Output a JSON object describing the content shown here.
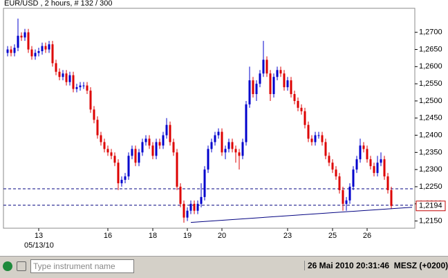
{
  "chart_data": {
    "type": "candlestick",
    "title": "EUR/USD , 2 hours, # 132 / 300",
    "categories": [
      null,
      null,
      null,
      null,
      null,
      null,
      null,
      null,
      null,
      "13",
      null,
      null,
      null,
      null,
      null,
      null,
      null,
      null,
      null,
      null,
      null,
      null,
      null,
      null,
      null,
      null,
      null,
      null,
      null,
      "16",
      null,
      null,
      null,
      null,
      null,
      null,
      null,
      null,
      null,
      null,
      null,
      null,
      "18",
      null,
      null,
      null,
      null,
      null,
      null,
      null,
      null,
      null,
      "19",
      null,
      null,
      null,
      null,
      null,
      null,
      null,
      null,
      null,
      "20",
      null,
      null,
      null,
      null,
      null,
      null,
      null,
      null,
      null,
      null,
      null,
      null,
      null,
      null,
      null,
      null,
      null,
      null,
      "23",
      null,
      null,
      null,
      null,
      null,
      null,
      null,
      null,
      null,
      null,
      null,
      null,
      "25",
      null,
      null,
      null,
      null,
      null,
      null,
      null,
      null,
      null,
      "26",
      null,
      null,
      null,
      null,
      null,
      null,
      null
    ],
    "date_label": "05/13/10",
    "open": [
      1.264,
      1.265,
      1.264,
      1.2655,
      1.269,
      1.2685,
      1.27,
      1.265,
      1.263,
      1.264,
      1.2645,
      1.266,
      1.265,
      1.2665,
      1.261,
      1.2585,
      1.257,
      1.258,
      1.2555,
      1.2575,
      1.2535,
      1.254,
      1.2545,
      1.2545,
      1.253,
      1.2475,
      1.2445,
      1.24,
      1.238,
      1.236,
      1.235,
      1.234,
      1.232,
      1.226,
      1.227,
      1.228,
      1.234,
      1.236,
      1.232,
      1.235,
      1.238,
      1.239,
      1.237,
      1.234,
      1.238,
      1.237,
      1.24,
      1.243,
      1.238,
      1.235,
      1.225,
      1.22,
      1.216,
      1.218,
      1.22,
      1.218,
      1.22,
      1.222,
      1.23,
      1.236,
      1.238,
      1.24,
      1.241,
      1.235,
      1.236,
      1.238,
      1.236,
      1.235,
      1.234,
      1.238,
      1.249,
      1.256,
      1.252,
      1.255,
      1.258,
      1.262,
      1.258,
      1.252,
      1.257,
      1.259,
      1.258,
      1.254,
      1.256,
      1.252,
      1.25,
      1.248,
      1.247,
      1.243,
      1.239,
      1.238,
      1.24,
      1.24,
      1.238,
      1.234,
      1.232,
      1.23,
      1.228,
      1.224,
      1.22,
      1.221,
      1.225,
      1.23,
      1.233,
      1.237,
      1.236,
      1.233,
      1.231,
      1.229,
      1.232,
      1.233,
      1.228,
      1.224
    ],
    "high": [
      1.266,
      1.266,
      1.2665,
      1.274,
      1.27,
      1.271,
      1.271,
      1.266,
      1.265,
      1.2655,
      1.267,
      1.267,
      1.2675,
      1.2675,
      1.262,
      1.2595,
      1.259,
      1.259,
      1.2585,
      1.2585,
      1.255,
      1.2555,
      1.2555,
      1.2555,
      1.254,
      1.2485,
      1.2455,
      1.241,
      1.239,
      1.237,
      1.236,
      1.235,
      1.233,
      1.228,
      1.229,
      1.235,
      1.237,
      1.237,
      1.236,
      1.239,
      1.24,
      1.24,
      1.238,
      1.239,
      1.239,
      1.241,
      1.245,
      1.244,
      1.239,
      1.236,
      1.226,
      1.221,
      1.219,
      1.221,
      1.221,
      1.221,
      1.226,
      1.231,
      1.237,
      1.239,
      1.241,
      1.242,
      1.242,
      1.237,
      1.239,
      1.239,
      1.237,
      1.236,
      1.239,
      1.25,
      1.26,
      1.257,
      1.256,
      1.259,
      1.2675,
      1.263,
      1.259,
      1.258,
      1.26,
      1.26,
      1.259,
      1.257,
      1.257,
      1.253,
      1.251,
      1.249,
      1.248,
      1.244,
      1.24,
      1.241,
      1.241,
      1.241,
      1.239,
      1.235,
      1.233,
      1.231,
      1.229,
      1.225,
      1.222,
      1.226,
      1.231,
      1.234,
      1.239,
      1.238,
      1.237,
      1.234,
      1.232,
      1.234,
      1.235,
      1.234,
      1.229,
      1.225
    ],
    "low": [
      1.263,
      1.263,
      1.263,
      1.2645,
      1.2675,
      1.2675,
      1.264,
      1.262,
      1.262,
      1.263,
      1.2635,
      1.264,
      1.264,
      1.26,
      1.2575,
      1.256,
      1.256,
      1.2545,
      1.2545,
      1.2525,
      1.2525,
      1.253,
      1.2535,
      1.252,
      1.2465,
      1.2435,
      1.239,
      1.237,
      1.235,
      1.234,
      1.233,
      1.231,
      1.224,
      1.225,
      1.226,
      1.227,
      1.233,
      1.231,
      1.231,
      1.234,
      1.237,
      1.236,
      1.233,
      1.233,
      1.236,
      1.236,
      1.239,
      1.237,
      1.234,
      1.224,
      1.219,
      1.2145,
      1.215,
      1.217,
      1.217,
      1.217,
      1.219,
      1.221,
      1.229,
      1.235,
      1.237,
      1.239,
      1.234,
      1.233,
      1.235,
      1.235,
      1.232,
      1.23,
      1.233,
      1.237,
      1.248,
      1.251,
      1.25,
      1.254,
      1.257,
      1.257,
      1.25,
      1.251,
      1.256,
      1.257,
      1.253,
      1.253,
      1.251,
      1.249,
      1.247,
      1.246,
      1.242,
      1.238,
      1.237,
      1.237,
      1.239,
      1.237,
      1.233,
      1.231,
      1.229,
      1.227,
      1.223,
      1.218,
      1.218,
      1.22,
      1.224,
      1.229,
      1.232,
      1.235,
      1.232,
      1.23,
      1.228,
      1.228,
      1.231,
      1.227,
      1.223,
      1.2185
    ],
    "close": [
      1.265,
      1.264,
      1.2655,
      1.269,
      1.2685,
      1.27,
      1.265,
      1.263,
      1.264,
      1.2645,
      1.266,
      1.265,
      1.2665,
      1.261,
      1.2585,
      1.257,
      1.258,
      1.2555,
      1.2575,
      1.2535,
      1.254,
      1.2545,
      1.2545,
      1.253,
      1.2475,
      1.2445,
      1.24,
      1.238,
      1.236,
      1.235,
      1.234,
      1.232,
      1.226,
      1.227,
      1.228,
      1.234,
      1.236,
      1.232,
      1.235,
      1.238,
      1.239,
      1.237,
      1.234,
      1.238,
      1.237,
      1.24,
      1.243,
      1.238,
      1.235,
      1.225,
      1.22,
      1.216,
      1.218,
      1.22,
      1.218,
      1.22,
      1.222,
      1.23,
      1.236,
      1.238,
      1.24,
      1.241,
      1.235,
      1.236,
      1.238,
      1.236,
      1.235,
      1.234,
      1.238,
      1.249,
      1.256,
      1.252,
      1.255,
      1.258,
      1.262,
      1.258,
      1.252,
      1.257,
      1.259,
      1.258,
      1.254,
      1.256,
      1.252,
      1.25,
      1.248,
      1.247,
      1.243,
      1.239,
      1.238,
      1.24,
      1.24,
      1.238,
      1.234,
      1.232,
      1.23,
      1.228,
      1.224,
      1.22,
      1.221,
      1.225,
      1.23,
      1.233,
      1.237,
      1.236,
      1.233,
      1.231,
      1.229,
      1.232,
      1.233,
      1.228,
      1.224,
      1.2194
    ],
    "up_color": "#0000cc",
    "down_color": "#dd0000",
    "ylim": [
      1.2129,
      1.277
    ],
    "yticks": [
      {
        "value": 1.215,
        "label": "1,2150"
      },
      {
        "value": 1.22,
        "label": "1,2200"
      },
      {
        "value": 1.225,
        "label": "1,2250"
      },
      {
        "value": 1.23,
        "label": "1,2300"
      },
      {
        "value": 1.235,
        "label": "1,2350"
      },
      {
        "value": 1.24,
        "label": "1,2400"
      },
      {
        "value": 1.245,
        "label": "1,2450"
      },
      {
        "value": 1.25,
        "label": "1,2500"
      },
      {
        "value": 1.255,
        "label": "1,2550"
      },
      {
        "value": 1.26,
        "label": "1,2600"
      },
      {
        "value": 1.265,
        "label": "1,2650"
      },
      {
        "value": 1.27,
        "label": "1,2700"
      }
    ],
    "levels": [
      1.2244,
      1.2196
    ],
    "trendline": {
      "x": [
        53,
        117
      ],
      "y": [
        1.2146,
        1.219
      ]
    },
    "last_price": {
      "value": 1.2194,
      "label": "1,2194"
    }
  },
  "toolbar": {
    "search_placeholder": "Type instrument name",
    "clock": "26 Mai 2010 20:31:46  MESZ (+0200)"
  }
}
